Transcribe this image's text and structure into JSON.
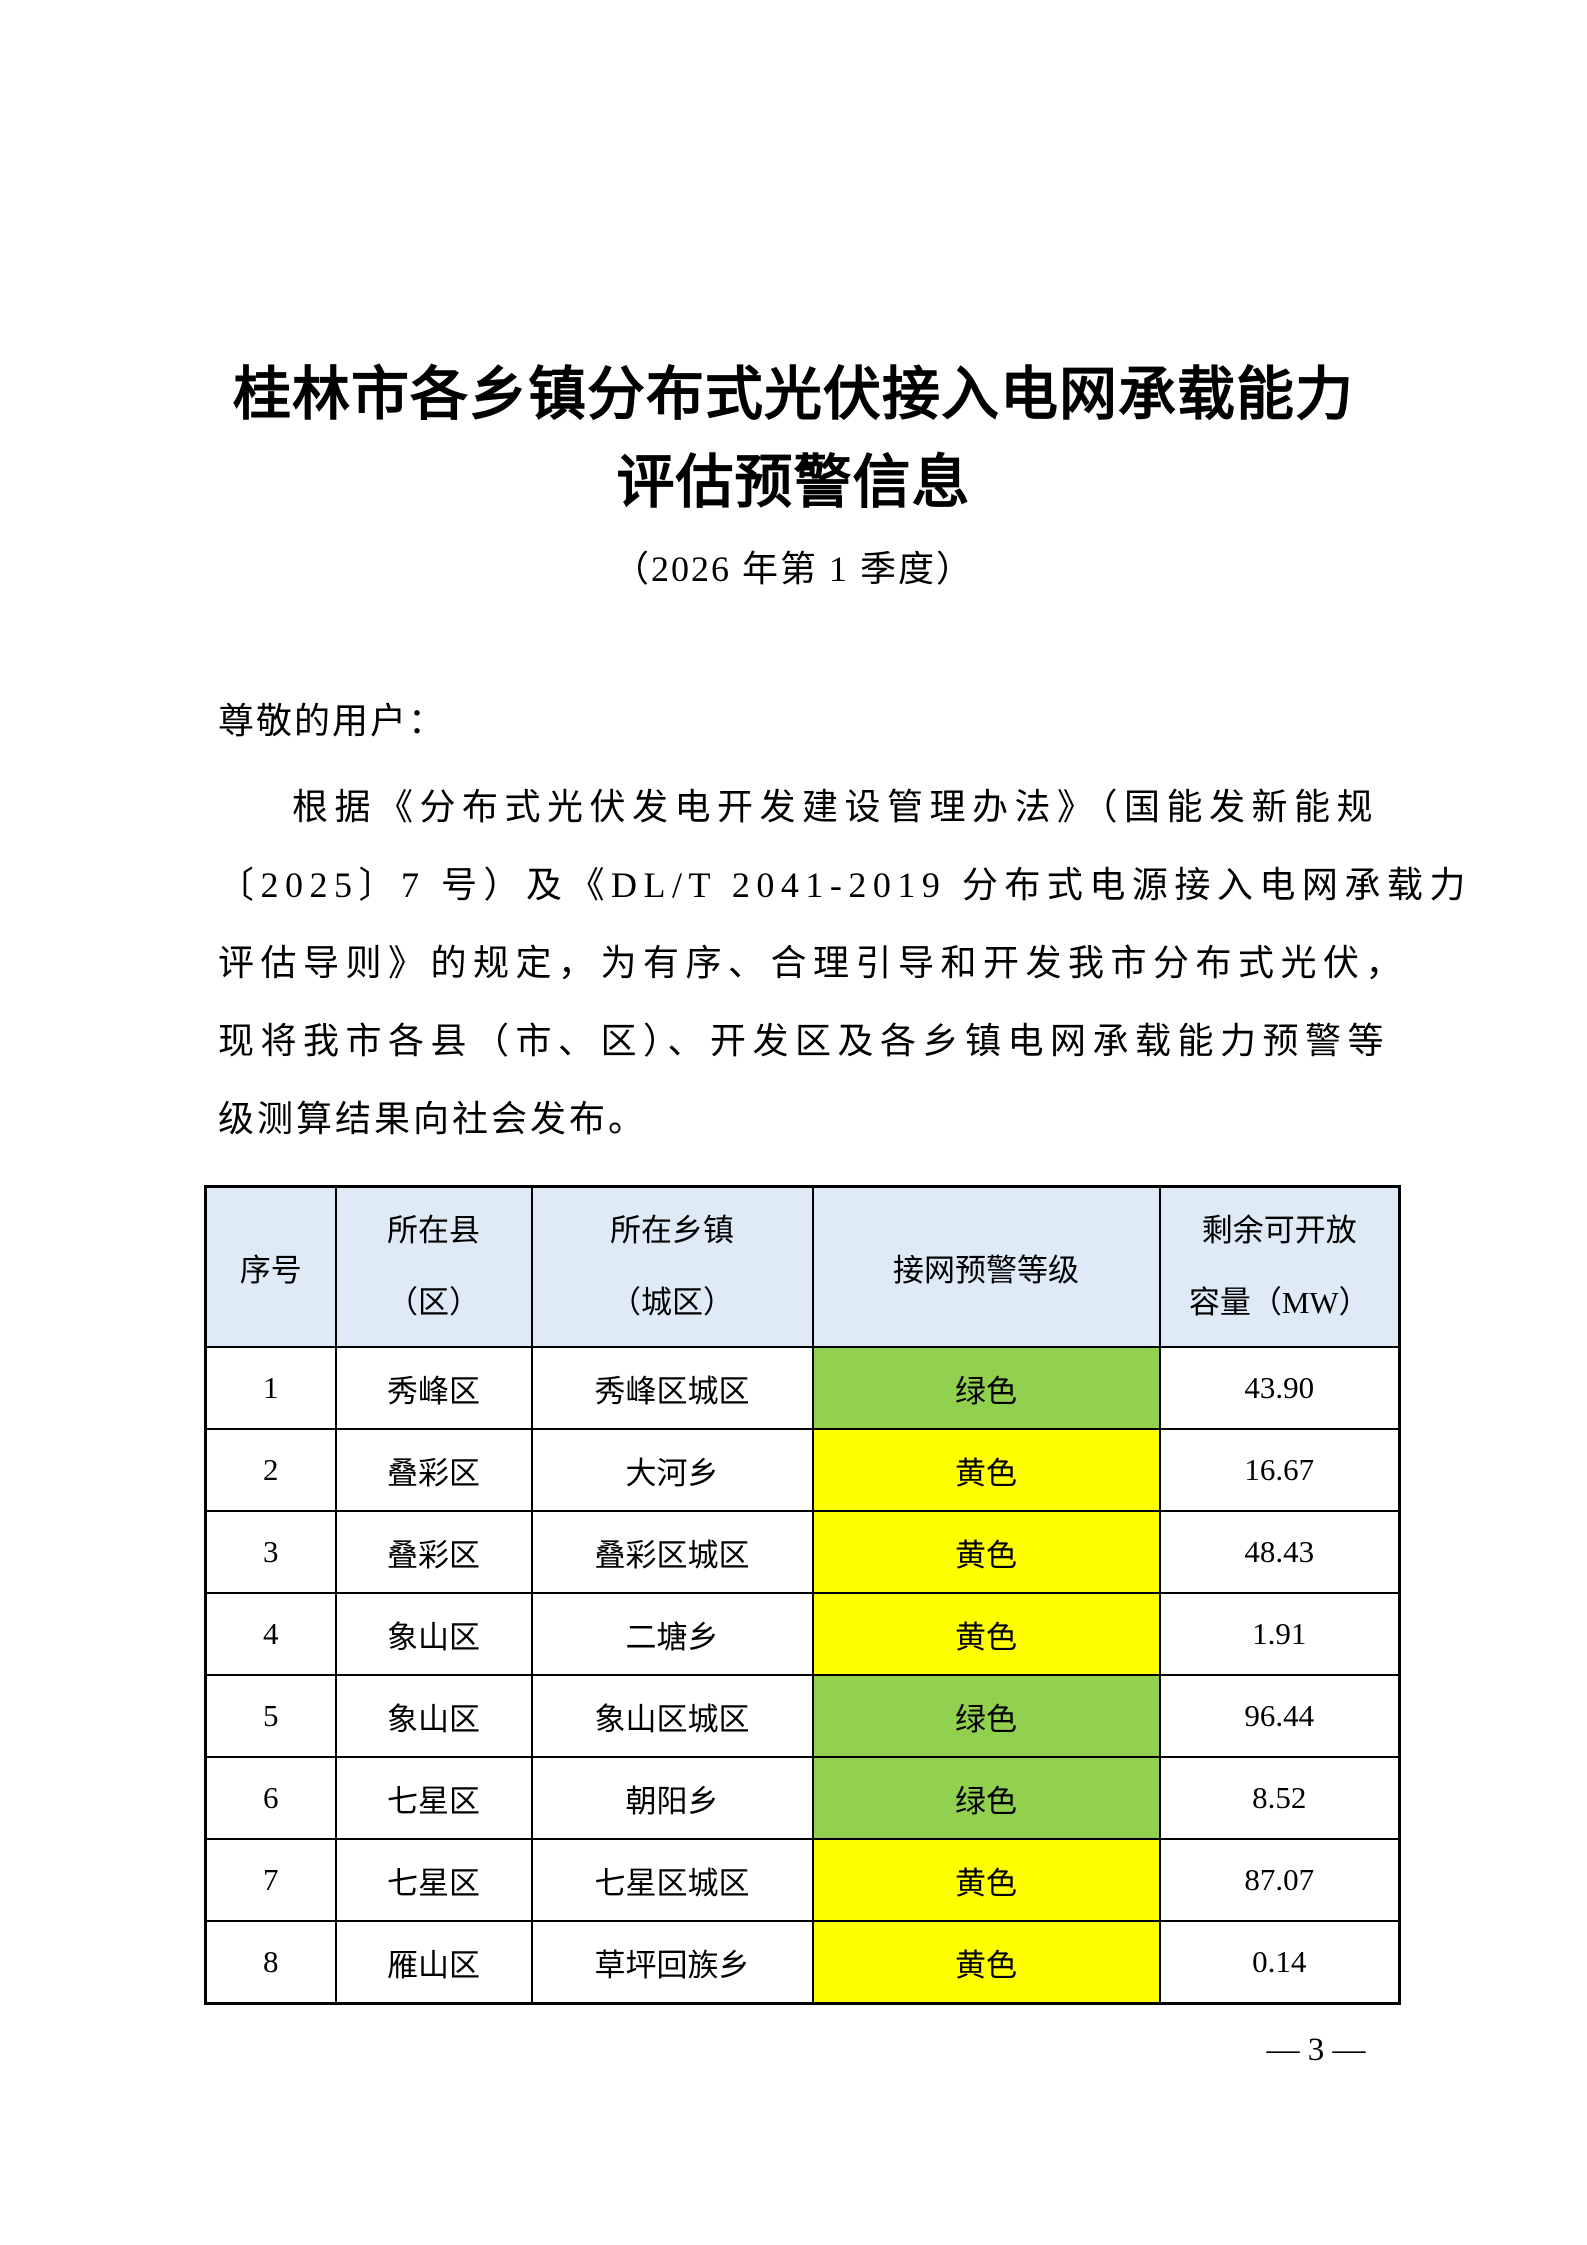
{
  "page": {
    "title_line1": "桂林市各乡镇分布式光伏接入电网承载能力",
    "title_line2": "评估预警信息",
    "subtitle": "（2026 年第 1 季度）",
    "page_number": "— 3 —"
  },
  "body": {
    "greeting": "尊敬的用户：",
    "para_lines": [
      "根据《分布式光伏发电开发建设管理办法》（国能发新能规",
      "〔2025〕7 号）及《DL/T 2041-2019 分布式电源接入电网承载力",
      "评估导则》的规定，为有序、合理引导和开发我市分布式光伏，",
      "现将我市各县（市、区）、开发区及各乡镇电网承载能力预警等",
      "级测算结果向社会发布。"
    ]
  },
  "colors": {
    "header_blue": "#DEEAF6",
    "green": "#92D050",
    "yellow": "#FFFF00"
  },
  "table": {
    "headers": {
      "seq": "序号",
      "county_line1": "所在县",
      "county_line2": "（区）",
      "town_line1": "所在乡镇",
      "town_line2": "（城区）",
      "level": "接网预警等级",
      "capacity_line1": "剩余可开放",
      "capacity_line2": "容量（MW）"
    },
    "rows": [
      {
        "seq": "1",
        "county": "秀峰区",
        "town": "秀峰区城区",
        "level": "绿色",
        "level_color": "#92D050",
        "capacity": "43.90"
      },
      {
        "seq": "2",
        "county": "叠彩区",
        "town": "大河乡",
        "level": "黄色",
        "level_color": "#FFFF00",
        "capacity": "16.67"
      },
      {
        "seq": "3",
        "county": "叠彩区",
        "town": "叠彩区城区",
        "level": "黄色",
        "level_color": "#FFFF00",
        "capacity": "48.43"
      },
      {
        "seq": "4",
        "county": "象山区",
        "town": "二塘乡",
        "level": "黄色",
        "level_color": "#FFFF00",
        "capacity": "1.91"
      },
      {
        "seq": "5",
        "county": "象山区",
        "town": "象山区城区",
        "level": "绿色",
        "level_color": "#92D050",
        "capacity": "96.44"
      },
      {
        "seq": "6",
        "county": "七星区",
        "town": "朝阳乡",
        "level": "绿色",
        "level_color": "#92D050",
        "capacity": "8.52"
      },
      {
        "seq": "7",
        "county": "七星区",
        "town": "七星区城区",
        "level": "黄色",
        "level_color": "#FFFF00",
        "capacity": "87.07"
      },
      {
        "seq": "8",
        "county": "雁山区",
        "town": "草坪回族乡",
        "level": "黄色",
        "level_color": "#FFFF00",
        "capacity": "0.14"
      }
    ]
  }
}
